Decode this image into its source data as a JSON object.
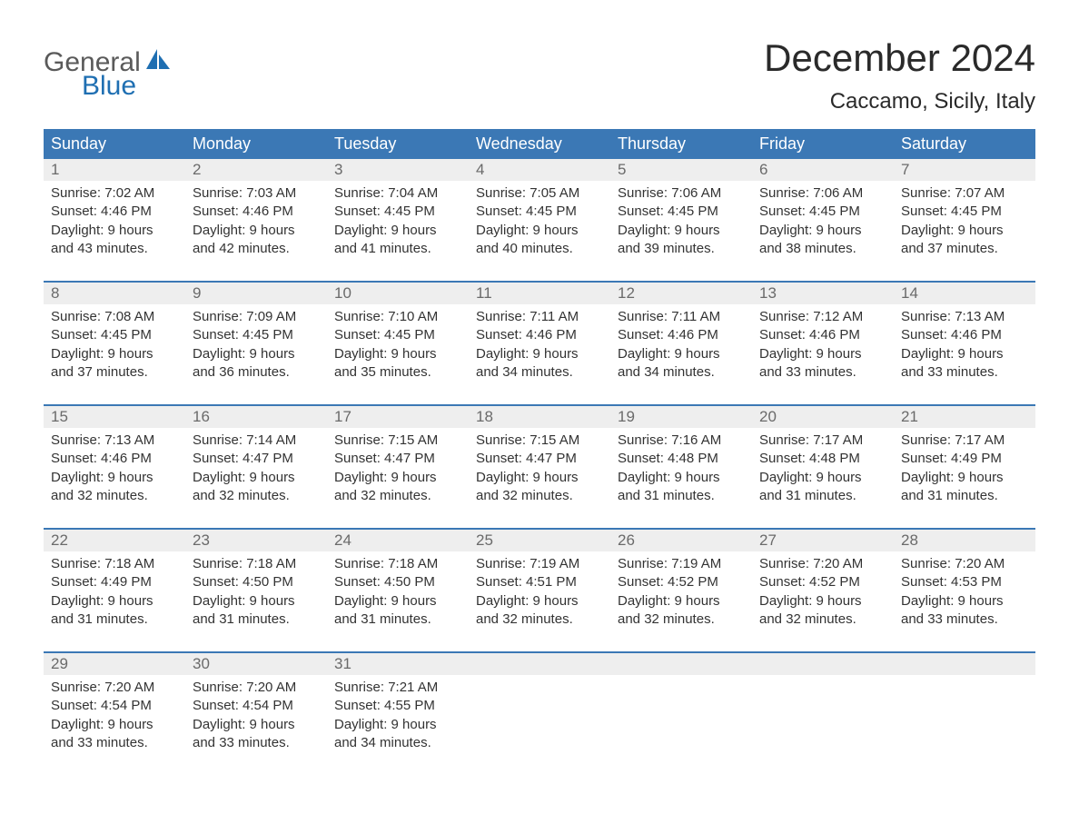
{
  "logo": {
    "text_top": "General",
    "text_bottom": "Blue",
    "brand_color": "#1f6fb2"
  },
  "title": "December 2024",
  "subtitle": "Caccamo, Sicily, Italy",
  "header_bg": "#3b78b5",
  "daynum_bg": "#eeeeee",
  "text_color": "#333333",
  "day_names": [
    "Sunday",
    "Monday",
    "Tuesday",
    "Wednesday",
    "Thursday",
    "Friday",
    "Saturday"
  ],
  "weeks": [
    [
      {
        "n": "1",
        "sunrise": "Sunrise: 7:02 AM",
        "sunset": "Sunset: 4:46 PM",
        "d1": "Daylight: 9 hours",
        "d2": "and 43 minutes."
      },
      {
        "n": "2",
        "sunrise": "Sunrise: 7:03 AM",
        "sunset": "Sunset: 4:46 PM",
        "d1": "Daylight: 9 hours",
        "d2": "and 42 minutes."
      },
      {
        "n": "3",
        "sunrise": "Sunrise: 7:04 AM",
        "sunset": "Sunset: 4:45 PM",
        "d1": "Daylight: 9 hours",
        "d2": "and 41 minutes."
      },
      {
        "n": "4",
        "sunrise": "Sunrise: 7:05 AM",
        "sunset": "Sunset: 4:45 PM",
        "d1": "Daylight: 9 hours",
        "d2": "and 40 minutes."
      },
      {
        "n": "5",
        "sunrise": "Sunrise: 7:06 AM",
        "sunset": "Sunset: 4:45 PM",
        "d1": "Daylight: 9 hours",
        "d2": "and 39 minutes."
      },
      {
        "n": "6",
        "sunrise": "Sunrise: 7:06 AM",
        "sunset": "Sunset: 4:45 PM",
        "d1": "Daylight: 9 hours",
        "d2": "and 38 minutes."
      },
      {
        "n": "7",
        "sunrise": "Sunrise: 7:07 AM",
        "sunset": "Sunset: 4:45 PM",
        "d1": "Daylight: 9 hours",
        "d2": "and 37 minutes."
      }
    ],
    [
      {
        "n": "8",
        "sunrise": "Sunrise: 7:08 AM",
        "sunset": "Sunset: 4:45 PM",
        "d1": "Daylight: 9 hours",
        "d2": "and 37 minutes."
      },
      {
        "n": "9",
        "sunrise": "Sunrise: 7:09 AM",
        "sunset": "Sunset: 4:45 PM",
        "d1": "Daylight: 9 hours",
        "d2": "and 36 minutes."
      },
      {
        "n": "10",
        "sunrise": "Sunrise: 7:10 AM",
        "sunset": "Sunset: 4:45 PM",
        "d1": "Daylight: 9 hours",
        "d2": "and 35 minutes."
      },
      {
        "n": "11",
        "sunrise": "Sunrise: 7:11 AM",
        "sunset": "Sunset: 4:46 PM",
        "d1": "Daylight: 9 hours",
        "d2": "and 34 minutes."
      },
      {
        "n": "12",
        "sunrise": "Sunrise: 7:11 AM",
        "sunset": "Sunset: 4:46 PM",
        "d1": "Daylight: 9 hours",
        "d2": "and 34 minutes."
      },
      {
        "n": "13",
        "sunrise": "Sunrise: 7:12 AM",
        "sunset": "Sunset: 4:46 PM",
        "d1": "Daylight: 9 hours",
        "d2": "and 33 minutes."
      },
      {
        "n": "14",
        "sunrise": "Sunrise: 7:13 AM",
        "sunset": "Sunset: 4:46 PM",
        "d1": "Daylight: 9 hours",
        "d2": "and 33 minutes."
      }
    ],
    [
      {
        "n": "15",
        "sunrise": "Sunrise: 7:13 AM",
        "sunset": "Sunset: 4:46 PM",
        "d1": "Daylight: 9 hours",
        "d2": "and 32 minutes."
      },
      {
        "n": "16",
        "sunrise": "Sunrise: 7:14 AM",
        "sunset": "Sunset: 4:47 PM",
        "d1": "Daylight: 9 hours",
        "d2": "and 32 minutes."
      },
      {
        "n": "17",
        "sunrise": "Sunrise: 7:15 AM",
        "sunset": "Sunset: 4:47 PM",
        "d1": "Daylight: 9 hours",
        "d2": "and 32 minutes."
      },
      {
        "n": "18",
        "sunrise": "Sunrise: 7:15 AM",
        "sunset": "Sunset: 4:47 PM",
        "d1": "Daylight: 9 hours",
        "d2": "and 32 minutes."
      },
      {
        "n": "19",
        "sunrise": "Sunrise: 7:16 AM",
        "sunset": "Sunset: 4:48 PM",
        "d1": "Daylight: 9 hours",
        "d2": "and 31 minutes."
      },
      {
        "n": "20",
        "sunrise": "Sunrise: 7:17 AM",
        "sunset": "Sunset: 4:48 PM",
        "d1": "Daylight: 9 hours",
        "d2": "and 31 minutes."
      },
      {
        "n": "21",
        "sunrise": "Sunrise: 7:17 AM",
        "sunset": "Sunset: 4:49 PM",
        "d1": "Daylight: 9 hours",
        "d2": "and 31 minutes."
      }
    ],
    [
      {
        "n": "22",
        "sunrise": "Sunrise: 7:18 AM",
        "sunset": "Sunset: 4:49 PM",
        "d1": "Daylight: 9 hours",
        "d2": "and 31 minutes."
      },
      {
        "n": "23",
        "sunrise": "Sunrise: 7:18 AM",
        "sunset": "Sunset: 4:50 PM",
        "d1": "Daylight: 9 hours",
        "d2": "and 31 minutes."
      },
      {
        "n": "24",
        "sunrise": "Sunrise: 7:18 AM",
        "sunset": "Sunset: 4:50 PM",
        "d1": "Daylight: 9 hours",
        "d2": "and 31 minutes."
      },
      {
        "n": "25",
        "sunrise": "Sunrise: 7:19 AM",
        "sunset": "Sunset: 4:51 PM",
        "d1": "Daylight: 9 hours",
        "d2": "and 32 minutes."
      },
      {
        "n": "26",
        "sunrise": "Sunrise: 7:19 AM",
        "sunset": "Sunset: 4:52 PM",
        "d1": "Daylight: 9 hours",
        "d2": "and 32 minutes."
      },
      {
        "n": "27",
        "sunrise": "Sunrise: 7:20 AM",
        "sunset": "Sunset: 4:52 PM",
        "d1": "Daylight: 9 hours",
        "d2": "and 32 minutes."
      },
      {
        "n": "28",
        "sunrise": "Sunrise: 7:20 AM",
        "sunset": "Sunset: 4:53 PM",
        "d1": "Daylight: 9 hours",
        "d2": "and 33 minutes."
      }
    ],
    [
      {
        "n": "29",
        "sunrise": "Sunrise: 7:20 AM",
        "sunset": "Sunset: 4:54 PM",
        "d1": "Daylight: 9 hours",
        "d2": "and 33 minutes."
      },
      {
        "n": "30",
        "sunrise": "Sunrise: 7:20 AM",
        "sunset": "Sunset: 4:54 PM",
        "d1": "Daylight: 9 hours",
        "d2": "and 33 minutes."
      },
      {
        "n": "31",
        "sunrise": "Sunrise: 7:21 AM",
        "sunset": "Sunset: 4:55 PM",
        "d1": "Daylight: 9 hours",
        "d2": "and 34 minutes."
      },
      null,
      null,
      null,
      null
    ]
  ]
}
